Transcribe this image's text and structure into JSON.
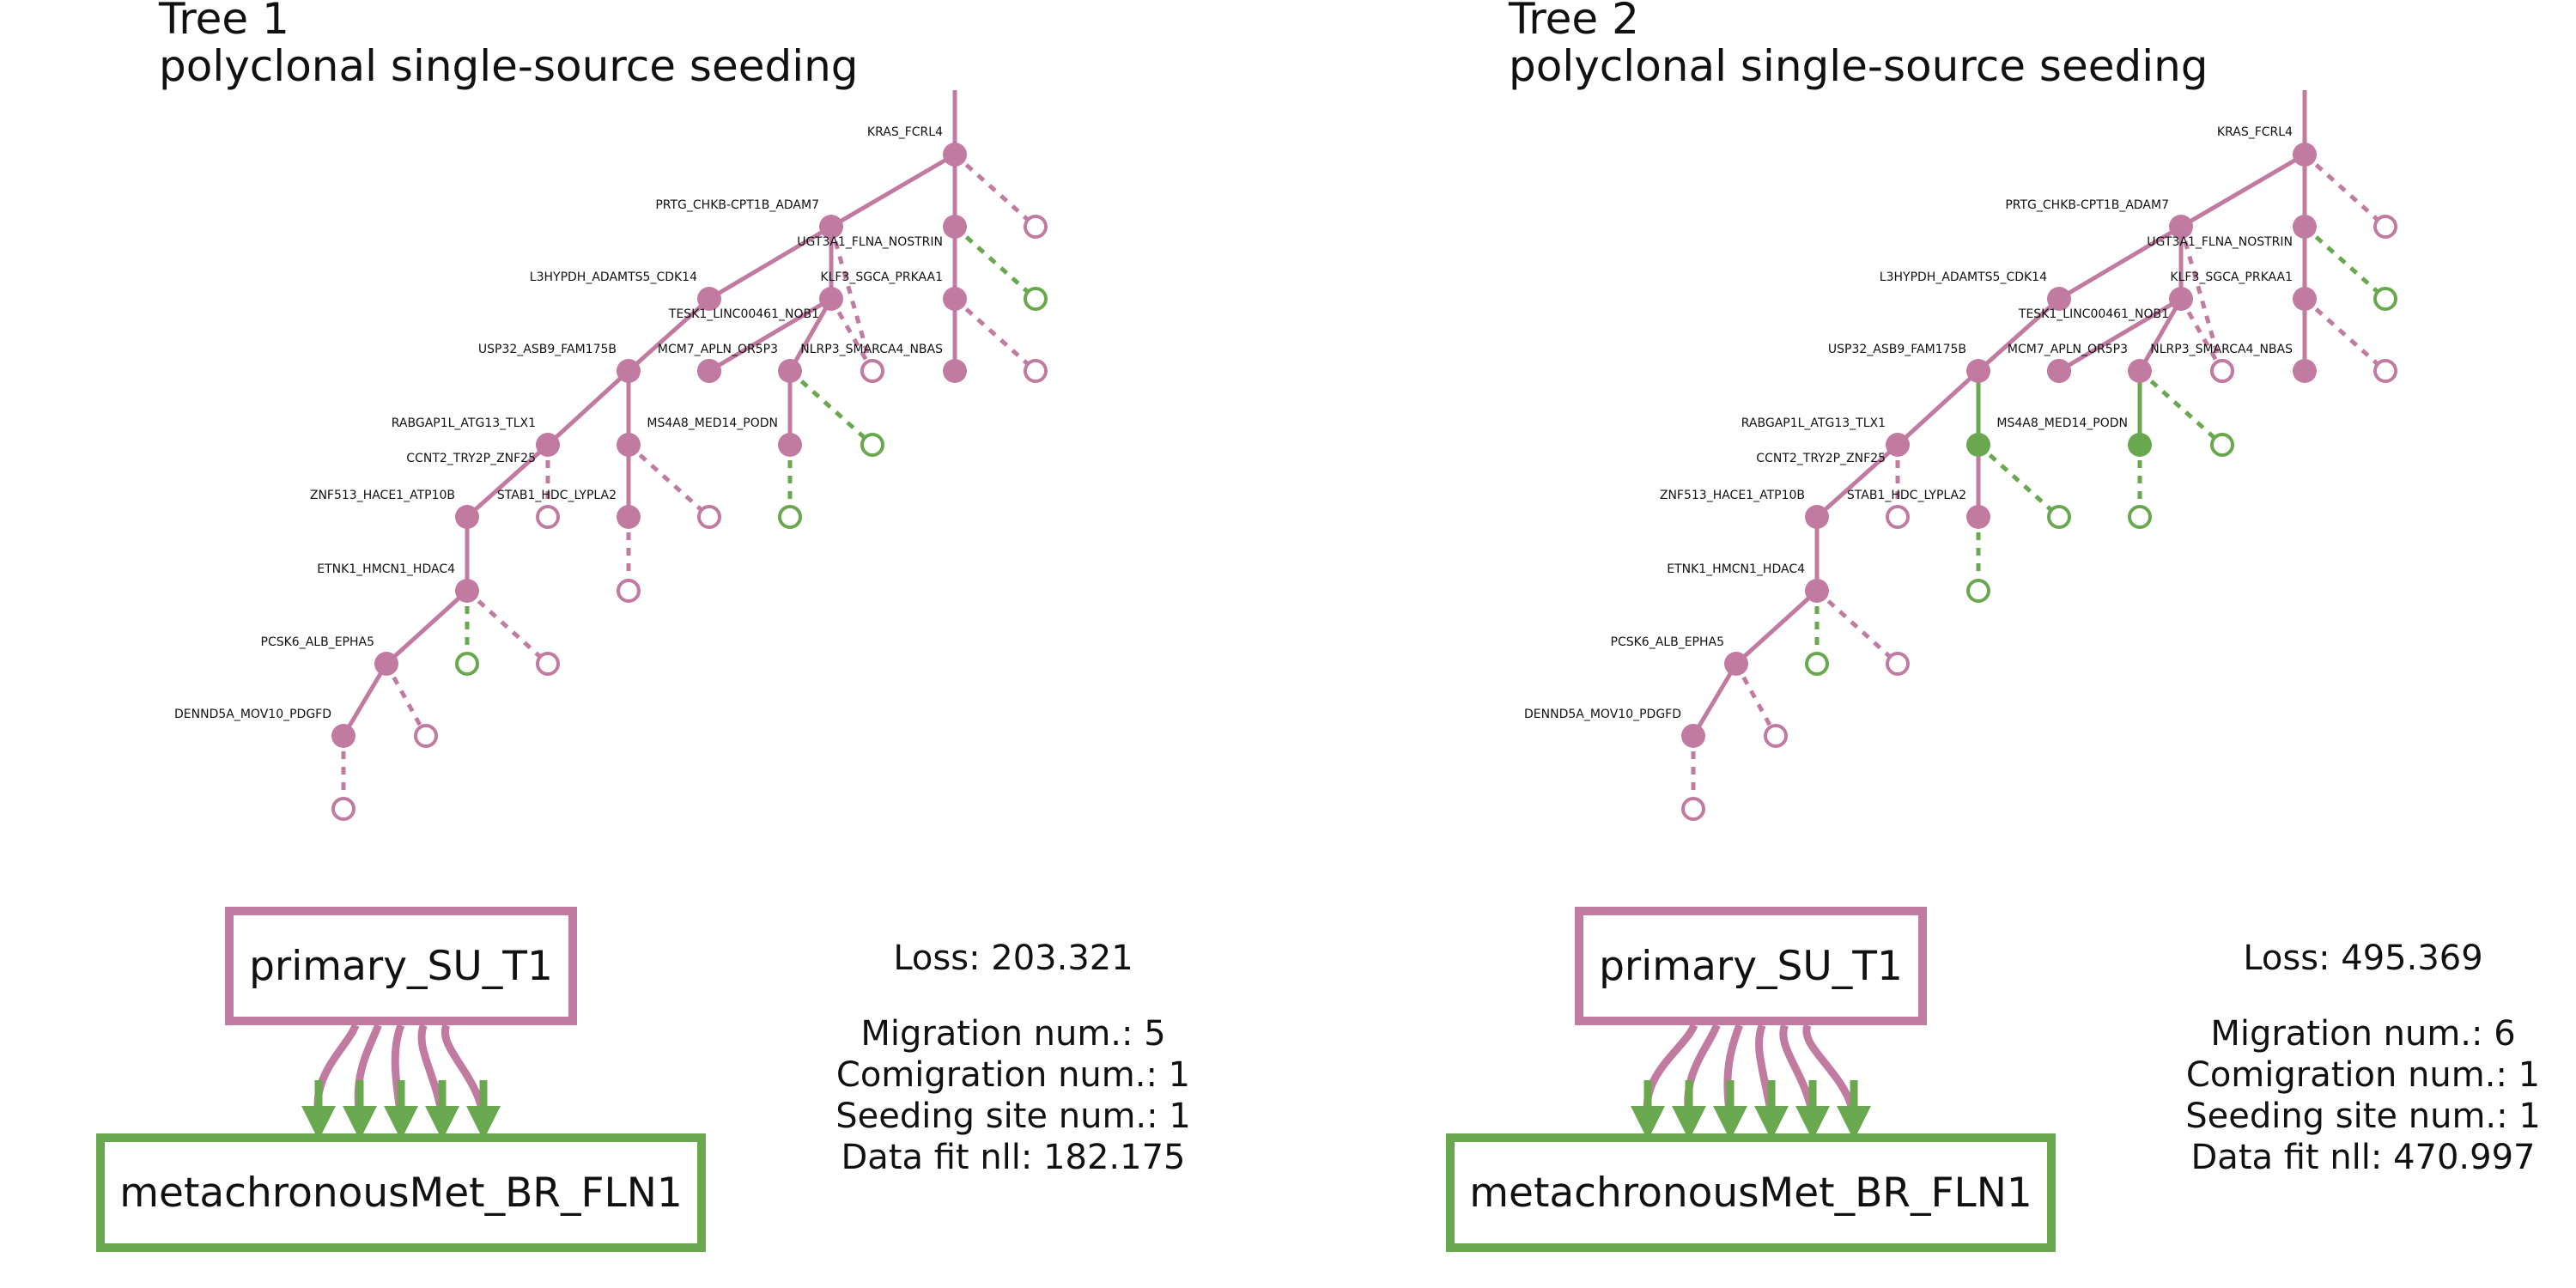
{
  "colors": {
    "primary": "#c27ba0",
    "metastasis": "#6aa84f",
    "text": "#111111"
  },
  "node_labels": {
    "n1": "KRAS_FCRL4",
    "n2": "PRTG_CHKB-CPT1B_ADAM7",
    "n3": "UGT3A1_FLNA_NOSTRIN",
    "n4": "L3HYPDH_ADAMTS5_CDK14",
    "n5": "TESK1_LINC00461_NOB1",
    "n6": "KLF3_SGCA_PRKAA1",
    "n7": "USP32_ASB9_FAM175B",
    "n8": "MCM7_APLN_OR5P3",
    "n9": "NLRP3_SMARCA4_NBAS",
    "n10": "RABGAP1L_ATG13_TLX1",
    "n11": "MS4A8_MED14_PODN",
    "n12": "CCNT2_TRY2P_ZNF25",
    "n13": "ZNF513_HACE1_ATP10B",
    "n14": "STAB1_HDC_LYPLA2",
    "n15": "ETNK1_HMCN1_HDAC4",
    "n16": "PCSK6_ALB_EPHA5",
    "n17": "DENND5A_MOV10_PDGFD"
  },
  "trees": [
    {
      "title": "Tree 1",
      "subtitle": "polyclonal single-source seeding",
      "primary_site": "primary_SU_T1",
      "met_site": "metachronousMet_BR_FLN1",
      "migration_arrows": 5,
      "stats": {
        "loss": "Loss: 203.321",
        "migration": "Migration num.: 5",
        "comigration": "Comigration num.: 1",
        "seeding": "Seeding site num.: 1",
        "datafit": "Data fit nll: 182.175"
      },
      "node_sites": {
        "n1": "primary",
        "n2": "primary",
        "n3": "primary",
        "n4": "primary",
        "n5": "primary",
        "n6": "primary",
        "n7": "primary",
        "n8": "primary",
        "n9": "primary",
        "n10": "primary",
        "n11": "primary",
        "n12": "primary",
        "n13": "primary",
        "n14": "primary",
        "n15": "primary",
        "n16": "primary",
        "n17": "primary"
      },
      "leaf_sites": {
        "l1": "primary",
        "l3": "met",
        "l6": "primary",
        "l9": "primary",
        "l8": "met",
        "l5": "primary",
        "l11": "met",
        "l14": "primary",
        "l12": "primary",
        "l15a": "met",
        "l15b": "primary",
        "l16": "primary",
        "l17": "primary",
        "l9m": "met"
      }
    },
    {
      "title": "Tree 2",
      "subtitle": "polyclonal single-source seeding",
      "primary_site": "primary_SU_T1",
      "met_site": "metachronousMet_BR_FLN1",
      "migration_arrows": 6,
      "stats": {
        "loss": "Loss: 495.369",
        "migration": "Migration num.: 6",
        "comigration": "Comigration num.: 1",
        "seeding": "Seeding site num.: 1",
        "datafit": "Data fit nll: 470.997"
      },
      "node_sites": {
        "n1": "primary",
        "n2": "primary",
        "n3": "primary",
        "n4": "primary",
        "n5": "primary",
        "n6": "primary",
        "n7": "primary",
        "n8": "primary",
        "n9": "primary",
        "n10": "primary",
        "n11": "met",
        "n12": "primary",
        "n13": "primary",
        "n14": "primary",
        "n15": "primary",
        "n16": "primary",
        "n17": "primary"
      },
      "leaf_sites": {
        "l1": "primary",
        "l3": "met",
        "l6": "primary",
        "l9": "primary",
        "l8": "met",
        "l5": "primary",
        "l11": "met",
        "l14": "met",
        "l12": "primary",
        "l15a": "met",
        "l15b": "primary",
        "l16": "primary",
        "l17": "primary",
        "l9m": "met"
      }
    }
  ]
}
